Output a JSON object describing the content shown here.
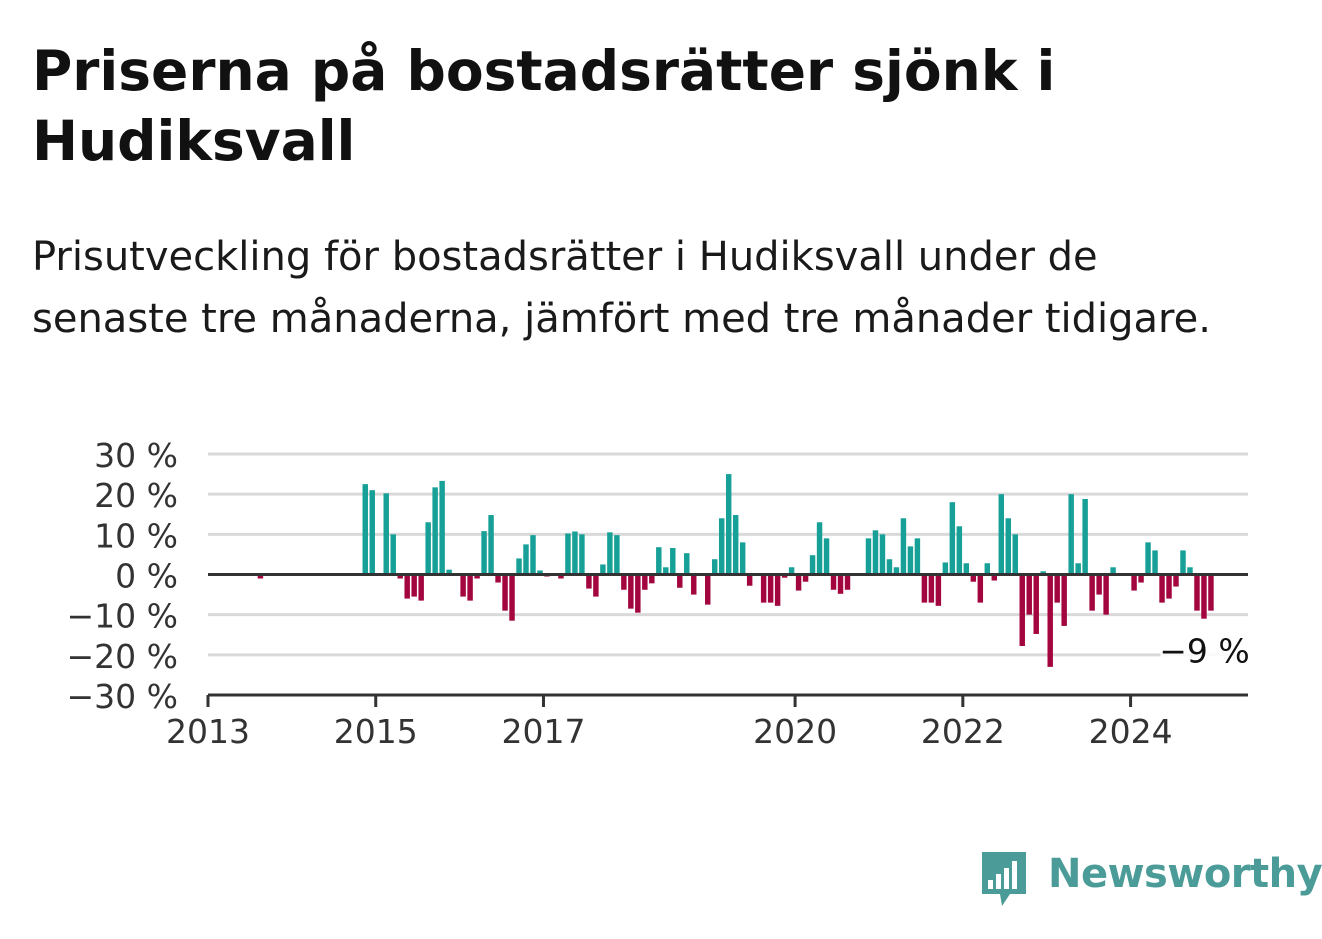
{
  "title": "Priserna på bostadsrätter sjönk i Hudiksvall",
  "subtitle": "Prisutveckling för bostadsrätter i Hudiksvall under de senaste tre månaderna, jämfört med tre månader tidigare.",
  "brand": {
    "name": "Newsworthy",
    "icon": "newsworthy-bar-chart-logo-icon",
    "color": "#4b9c99"
  },
  "colors": {
    "positive": "#16a097",
    "negative": "#a3063f",
    "grid": "#d9d9d9",
    "axis": "#333333"
  },
  "chart_data": {
    "type": "bar",
    "title": "Priserna på bostadsrätter sjönk i Hudiksvall",
    "xlabel": "",
    "ylabel": "",
    "ylim": [
      -30,
      30
    ],
    "yticks": [
      30,
      20,
      10,
      0,
      -10,
      -20,
      -30
    ],
    "ytick_labels": [
      "30 %",
      "20 %",
      "10 %",
      "0 %",
      "−10 %",
      "−20 %",
      "−30 %"
    ],
    "xlim": [
      "2013-01",
      "2025-06"
    ],
    "xticks": [
      "2013",
      "2015",
      "2017",
      "2020",
      "2022",
      "2024"
    ],
    "grid": true,
    "annotation": {
      "text": "−9 %",
      "x": "2024-11",
      "value": -9
    },
    "x": [
      "2013-01",
      "2013-02",
      "2013-03",
      "2013-04",
      "2013-05",
      "2013-06",
      "2013-07",
      "2013-08",
      "2013-09",
      "2013-10",
      "2013-11",
      "2013-12",
      "2014-01",
      "2014-02",
      "2014-03",
      "2014-04",
      "2014-05",
      "2014-06",
      "2014-07",
      "2014-08",
      "2014-09",
      "2014-10",
      "2014-11",
      "2014-12",
      "2015-01",
      "2015-02",
      "2015-03",
      "2015-04",
      "2015-05",
      "2015-06",
      "2015-07",
      "2015-08",
      "2015-09",
      "2015-10",
      "2015-11",
      "2015-12",
      "2016-01",
      "2016-02",
      "2016-03",
      "2016-04",
      "2016-05",
      "2016-06",
      "2016-07",
      "2016-08",
      "2016-09",
      "2016-10",
      "2016-11",
      "2016-12",
      "2017-01",
      "2017-02",
      "2017-03",
      "2017-04",
      "2017-05",
      "2017-06",
      "2017-07",
      "2017-08",
      "2017-09",
      "2017-10",
      "2017-11",
      "2017-12",
      "2018-01",
      "2018-02",
      "2018-03",
      "2018-04",
      "2018-05",
      "2018-06",
      "2018-07",
      "2018-08",
      "2018-09",
      "2018-10",
      "2018-11",
      "2018-12",
      "2019-01",
      "2019-02",
      "2019-03",
      "2019-04",
      "2019-05",
      "2019-06",
      "2019-07",
      "2019-08",
      "2019-09",
      "2019-10",
      "2019-11",
      "2019-12",
      "2020-01",
      "2020-02",
      "2020-03",
      "2020-04",
      "2020-05",
      "2020-06",
      "2020-07",
      "2020-08",
      "2020-09",
      "2020-10",
      "2020-11",
      "2020-12",
      "2021-01",
      "2021-02",
      "2021-03",
      "2021-04",
      "2021-05",
      "2021-06",
      "2021-07",
      "2021-08",
      "2021-09",
      "2021-10",
      "2021-11",
      "2021-12",
      "2022-01",
      "2022-02",
      "2022-03",
      "2022-04",
      "2022-05",
      "2022-06",
      "2022-07",
      "2022-08",
      "2022-09",
      "2022-10",
      "2022-11",
      "2022-12",
      "2023-01",
      "2023-02",
      "2023-03",
      "2023-04",
      "2023-05",
      "2023-06",
      "2023-07",
      "2023-08",
      "2023-09",
      "2023-10",
      "2023-11",
      "2023-12",
      "2024-01",
      "2024-02",
      "2024-03",
      "2024-04",
      "2024-05",
      "2024-06",
      "2024-07",
      "2024-08",
      "2024-09",
      "2024-10",
      "2024-11",
      "2024-12"
    ],
    "values": [
      0,
      0,
      0,
      0,
      0,
      0,
      0,
      -1,
      0,
      0,
      0,
      0,
      0,
      0,
      0,
      0,
      0,
      0,
      0,
      0,
      0,
      0,
      22.5,
      21,
      0,
      20.2,
      10,
      -1,
      -6,
      -5.5,
      -6.5,
      13,
      21.7,
      23.3,
      1.2,
      0,
      -5.5,
      -6.5,
      -1,
      10.8,
      14.8,
      -2,
      -9,
      -11.5,
      4,
      7.5,
      9.8,
      1,
      -0.5,
      0,
      -1,
      10.2,
      10.7,
      10,
      -3.5,
      -5.5,
      2.5,
      10.5,
      9.8,
      -3.8,
      -8.5,
      -9.5,
      -3.8,
      -2.2,
      6.8,
      1.8,
      6.6,
      -3.3,
      5.3,
      -5,
      0,
      -7.5,
      3.8,
      14,
      25,
      14.8,
      8,
      -2.8,
      0,
      -7,
      -7,
      -7.8,
      -0.8,
      1.8,
      -4,
      -1.8,
      4.8,
      13,
      9,
      -3.8,
      -4.8,
      -3.8,
      0,
      0,
      9,
      11,
      10,
      3.8,
      1.8,
      14,
      7,
      9,
      -7,
      -7,
      -7.8,
      3,
      18,
      12,
      2.8,
      -1.8,
      -7,
      2.8,
      -1.5,
      20,
      14,
      10,
      -17.8,
      -10,
      -14.8,
      0.8,
      -23,
      -7,
      -12.8,
      20,
      2.8,
      18.8,
      -9,
      -5,
      -10,
      1.8,
      0,
      0,
      -4,
      -2,
      8,
      6,
      -7,
      -6,
      -3,
      6,
      1.8,
      -9,
      -11,
      -9
    ]
  }
}
